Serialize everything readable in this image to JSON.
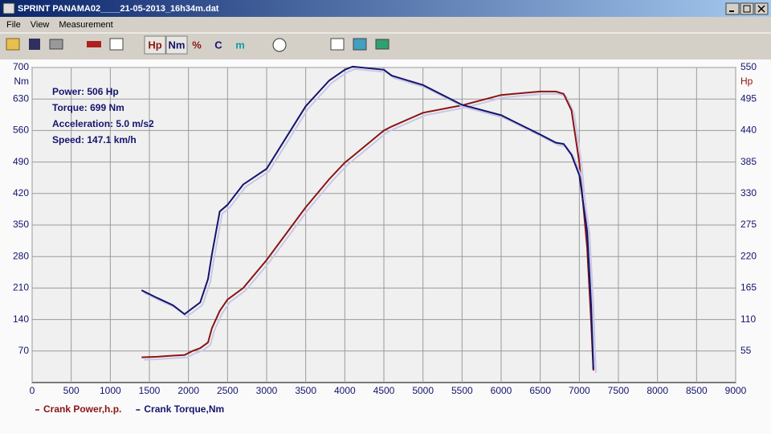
{
  "window": {
    "title": "SPRINT PANAMA02____21-05-2013_16h34m.dat"
  },
  "menu": [
    "File",
    "View",
    "Measurement"
  ],
  "toolbar": [
    "Hp",
    "Nm",
    "%",
    "C",
    "m"
  ],
  "chart_data": {
    "type": "line",
    "annotations": [
      "Power: 506 Hp",
      "Torque: 699 Nm",
      "Acceleration: 5.0 m/s2",
      "Speed: 147.1 km/h"
    ],
    "y_label": "Nm",
    "y2_label": "Hp",
    "x": [
      1400,
      1600,
      1800,
      1950,
      2050,
      2150,
      2250,
      2300,
      2400,
      2500,
      2700,
      3000,
      3500,
      3800,
      4000,
      4100,
      4500,
      4600,
      5000,
      5500,
      6000,
      6500,
      6700,
      6800,
      6900,
      7000,
      7100,
      7150,
      7180
    ],
    "series": [
      {
        "name": "Crank Power,h.p.",
        "color": "#8b1414",
        "axis": "y2",
        "values": [
          44,
          45,
          47,
          48,
          55,
          60,
          70,
          95,
          125,
          145,
          165,
          214,
          306,
          355,
          384,
          395,
          440,
          447,
          471,
          484,
          502,
          508,
          508,
          504,
          475,
          384,
          236,
          109,
          21
        ]
      },
      {
        "name": "Crank Torque,Nm",
        "color": "#14146e",
        "values": [
          205,
          188,
          172,
          152,
          165,
          178,
          230,
          285,
          380,
          395,
          440,
          475,
          614,
          671,
          695,
          702,
          695,
          682,
          661,
          617,
          594,
          551,
          533,
          530,
          506,
          461,
          336,
          174,
          30
        ]
      }
    ],
    "xlim": [
      0,
      9000
    ],
    "xticks": [
      0,
      500,
      1000,
      1500,
      2000,
      2500,
      3000,
      3500,
      4000,
      4500,
      5000,
      5500,
      6000,
      6500,
      7000,
      7500,
      8000,
      8500,
      9000
    ],
    "ylim": [
      0,
      700
    ],
    "yticks": [
      70,
      140,
      210,
      280,
      350,
      420,
      490,
      560,
      630,
      700
    ],
    "y2lim": [
      0,
      550
    ],
    "y2ticks": [
      55,
      110,
      165,
      220,
      275,
      330,
      385,
      440,
      495,
      550
    ],
    "grid": true
  }
}
